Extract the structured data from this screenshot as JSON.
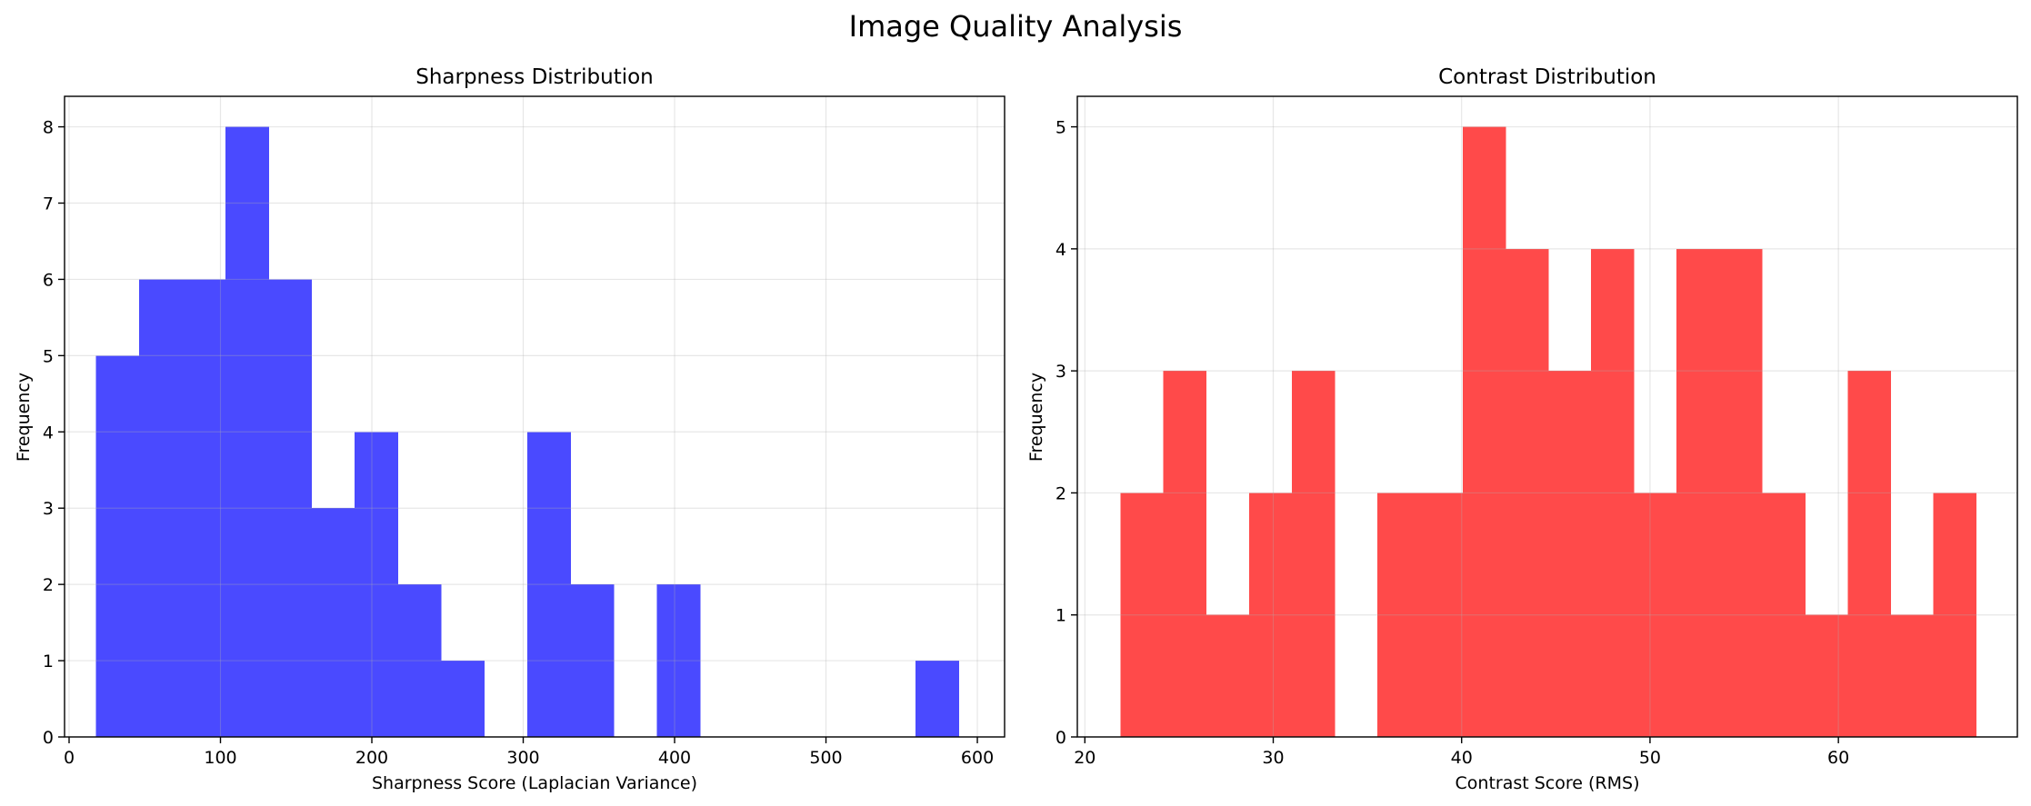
{
  "figure": {
    "title": "Image Quality Analysis"
  },
  "chart_data": [
    {
      "type": "bar",
      "title": "Sharpness Distribution",
      "xlabel": "Sharpness Score (Laplacian Variance)",
      "ylabel": "Frequency",
      "xlim": [
        -3,
        618
      ],
      "ylim": [
        0,
        8.4
      ],
      "xticks": [
        0,
        100,
        200,
        300,
        400,
        500,
        600
      ],
      "yticks": [
        0,
        1,
        2,
        3,
        4,
        5,
        6,
        7,
        8
      ],
      "grid": true,
      "bar_color": "#4a4aff",
      "bins": [
        {
          "x0": 17.7,
          "x1": 46.2,
          "count": 5
        },
        {
          "x0": 46.2,
          "x1": 74.7,
          "count": 6
        },
        {
          "x0": 74.7,
          "x1": 103.2,
          "count": 6
        },
        {
          "x0": 103.2,
          "x1": 131.7,
          "count": 8
        },
        {
          "x0": 131.7,
          "x1": 160.2,
          "count": 6
        },
        {
          "x0": 160.2,
          "x1": 188.7,
          "count": 3
        },
        {
          "x0": 188.7,
          "x1": 217.2,
          "count": 4
        },
        {
          "x0": 217.2,
          "x1": 245.7,
          "count": 2
        },
        {
          "x0": 245.7,
          "x1": 274.2,
          "count": 1
        },
        {
          "x0": 274.2,
          "x1": 302.7,
          "count": 0
        },
        {
          "x0": 302.7,
          "x1": 331.2,
          "count": 4
        },
        {
          "x0": 331.2,
          "x1": 359.7,
          "count": 2
        },
        {
          "x0": 359.7,
          "x1": 388.2,
          "count": 0
        },
        {
          "x0": 388.2,
          "x1": 416.7,
          "count": 2
        },
        {
          "x0": 416.7,
          "x1": 445.2,
          "count": 0
        },
        {
          "x0": 445.2,
          "x1": 473.7,
          "count": 0
        },
        {
          "x0": 473.7,
          "x1": 502.2,
          "count": 0
        },
        {
          "x0": 502.2,
          "x1": 530.7,
          "count": 0
        },
        {
          "x0": 530.7,
          "x1": 559.2,
          "count": 0
        },
        {
          "x0": 559.2,
          "x1": 587.7,
          "count": 1
        }
      ]
    },
    {
      "type": "bar",
      "title": "Contrast Distribution",
      "xlabel": "Contrast Score (RMS)",
      "ylabel": "Frequency",
      "xlim": [
        19.6,
        69.5
      ],
      "ylim": [
        0,
        5.25
      ],
      "xticks": [
        20,
        30,
        40,
        50,
        60
      ],
      "yticks": [
        0,
        1,
        2,
        3,
        4,
        5
      ],
      "grid": true,
      "bar_color": "#ff4a4a",
      "bins": [
        {
          "x0": 21.9,
          "x1": 24.17,
          "count": 2
        },
        {
          "x0": 24.17,
          "x1": 26.44,
          "count": 3
        },
        {
          "x0": 26.44,
          "x1": 28.71,
          "count": 1
        },
        {
          "x0": 28.71,
          "x1": 30.98,
          "count": 2
        },
        {
          "x0": 30.98,
          "x1": 33.25,
          "count": 3
        },
        {
          "x0": 33.25,
          "x1": 35.52,
          "count": 0
        },
        {
          "x0": 35.52,
          "x1": 37.79,
          "count": 2
        },
        {
          "x0": 37.79,
          "x1": 40.06,
          "count": 2
        },
        {
          "x0": 40.06,
          "x1": 42.33,
          "count": 5
        },
        {
          "x0": 42.33,
          "x1": 44.6,
          "count": 4
        },
        {
          "x0": 44.6,
          "x1": 46.87,
          "count": 3
        },
        {
          "x0": 46.87,
          "x1": 49.14,
          "count": 4
        },
        {
          "x0": 49.14,
          "x1": 51.41,
          "count": 2
        },
        {
          "x0": 51.41,
          "x1": 53.68,
          "count": 4
        },
        {
          "x0": 53.68,
          "x1": 55.95,
          "count": 4
        },
        {
          "x0": 55.95,
          "x1": 58.22,
          "count": 2
        },
        {
          "x0": 58.22,
          "x1": 60.49,
          "count": 1
        },
        {
          "x0": 60.49,
          "x1": 62.76,
          "count": 3
        },
        {
          "x0": 62.76,
          "x1": 65.03,
          "count": 1
        },
        {
          "x0": 65.03,
          "x1": 67.3,
          "count": 2
        }
      ]
    }
  ]
}
